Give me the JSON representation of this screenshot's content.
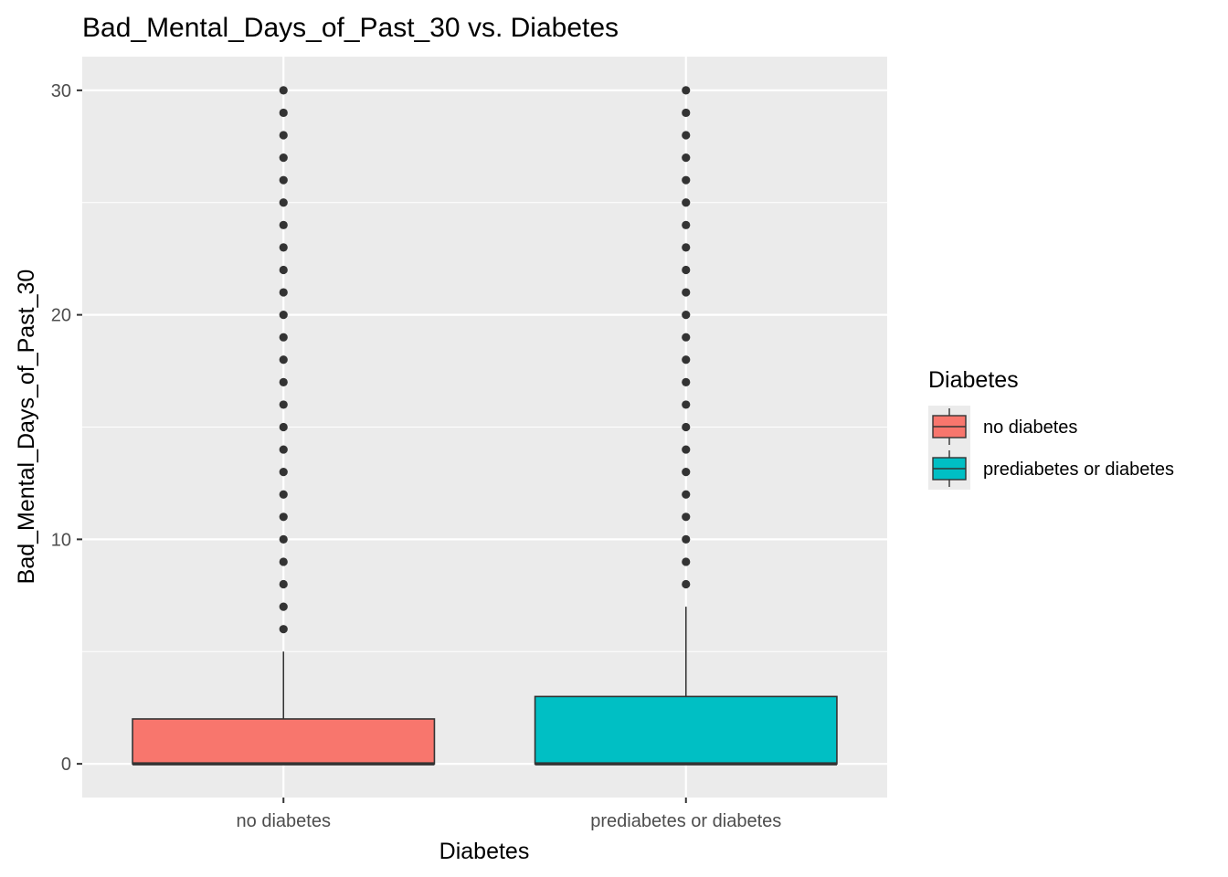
{
  "chart_data": {
    "type": "boxplot",
    "title": "Bad_Mental_Days_of_Past_30 vs. Diabetes",
    "xlabel": "Diabetes",
    "ylabel": "Bad_Mental_Days_of_Past_30",
    "categories": [
      "no diabetes",
      "prediabetes or diabetes"
    ],
    "ylim": [
      -1.5,
      31.5
    ],
    "yticks": [
      0,
      10,
      20,
      30
    ],
    "grid": true,
    "legend": {
      "title": "Diabetes",
      "placement": "right",
      "entries": [
        "no diabetes",
        "prediabetes or diabetes"
      ]
    },
    "series": [
      {
        "name": "no diabetes",
        "color": "#F8766D",
        "min": 0,
        "q1": 0,
        "median": 0,
        "q3": 2,
        "max": 5,
        "outliers": [
          6,
          7,
          8,
          9,
          10,
          11,
          12,
          13,
          14,
          15,
          16,
          17,
          18,
          19,
          20,
          21,
          22,
          23,
          24,
          25,
          26,
          27,
          28,
          29,
          30
        ]
      },
      {
        "name": "prediabetes or diabetes",
        "color": "#00BFC4",
        "min": 0,
        "q1": 0,
        "median": 0,
        "q3": 3,
        "max": 7,
        "outliers": [
          8,
          9,
          10,
          11,
          12,
          13,
          14,
          15,
          16,
          17,
          18,
          19,
          20,
          21,
          22,
          23,
          24,
          25,
          26,
          27,
          28,
          29,
          30
        ]
      }
    ],
    "colors": {
      "panel": "#EBEBEB",
      "grid": "#FFFFFF",
      "outline": "#333333",
      "tick_text": "#4D4D4D"
    }
  }
}
